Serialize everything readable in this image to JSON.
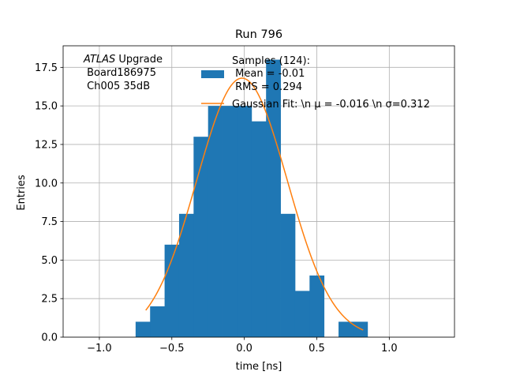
{
  "chart_data": {
    "type": "bar",
    "title": "Run 796",
    "xlabel": "time [ns]",
    "ylabel": "Entries",
    "xlim": [
      -1.25,
      1.45
    ],
    "ylim": [
      0,
      18.9
    ],
    "grid": true,
    "xticks": [
      -1.0,
      -0.5,
      0.0,
      0.5,
      1.0
    ],
    "xtick_labels": [
      "−1.0",
      "−0.5",
      "0.0",
      "0.5",
      "1.0"
    ],
    "yticks": [
      0.0,
      2.5,
      5.0,
      7.5,
      10.0,
      12.5,
      15.0,
      17.5
    ],
    "ytick_labels": [
      "0.0",
      "2.5",
      "5.0",
      "7.5",
      "10.0",
      "12.5",
      "15.0",
      "17.5"
    ],
    "bar_color": "#1f77b4",
    "fit_color": "#ff7f0e",
    "histogram": {
      "bin_edges": [
        -0.75,
        -0.65,
        -0.55,
        -0.45,
        -0.35,
        -0.25,
        -0.15,
        -0.05,
        0.05,
        0.15,
        0.25,
        0.35,
        0.45,
        0.55,
        0.65,
        0.75,
        0.85,
        0.95
      ],
      "counts": [
        1,
        2,
        6,
        8,
        13,
        15,
        15,
        15,
        14,
        18,
        8,
        3,
        4,
        0,
        1,
        1,
        0
      ]
    },
    "gaussian_fit": {
      "mu": -0.016,
      "sigma": 0.312,
      "amplitude": 16.8,
      "x_range": [
        -0.68,
        0.82
      ]
    },
    "annotation": {
      "experiment": "ATLAS",
      "tag": " Upgrade",
      "line2": " Board186975",
      "line3": " Ch005 35dB"
    },
    "legend": {
      "position": "top-right",
      "samples_line1": "Samples (124):",
      "samples_line2": " Mean = -0.01",
      "samples_line3": " RMS = 0.294",
      "fit_label": "Gaussian Fit: \\n μ = -0.016 \\n σ=0.312"
    }
  }
}
